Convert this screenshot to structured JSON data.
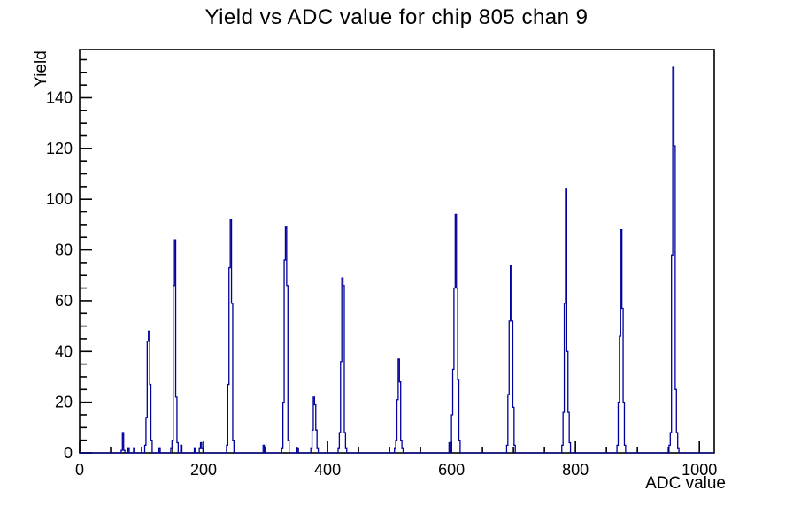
{
  "title": "Yield vs ADC value for chip 805 chan 9",
  "x_axis": {
    "label": "ADC value",
    "min": 0,
    "max": 1024,
    "major_ticks": [
      0,
      200,
      400,
      600,
      800,
      1000
    ],
    "minor_step": 50
  },
  "y_axis": {
    "label": "Yield",
    "min": 0,
    "max": 159,
    "major_ticks": [
      0,
      20,
      40,
      60,
      80,
      100,
      120,
      140
    ],
    "minor_step": 5
  },
  "colors": {
    "histogram": "#00009a",
    "axis": "#000000",
    "background": "#ffffff"
  },
  "chart_data": {
    "type": "bar",
    "title": "Yield vs ADC value for chip 805 chan 9",
    "xlabel": "ADC value",
    "ylabel": "Yield",
    "xlim": [
      0,
      1024
    ],
    "ylim": [
      0,
      159
    ],
    "grid": false,
    "legend": false,
    "bin_width": 2,
    "peaks": [
      {
        "start": 67,
        "heights": [
          1,
          8,
          1
        ]
      },
      {
        "start": 78,
        "heights": [
          2
        ]
      },
      {
        "start": 87,
        "heights": [
          2
        ]
      },
      {
        "start": 105,
        "heights": [
          3,
          14,
          44,
          48,
          27,
          5
        ]
      },
      {
        "start": 128,
        "heights": [
          2
        ]
      },
      {
        "start": 147,
        "heights": [
          2,
          5,
          66,
          84,
          22,
          4
        ]
      },
      {
        "start": 163,
        "heights": [
          3
        ]
      },
      {
        "start": 185,
        "heights": [
          2
        ]
      },
      {
        "start": 193,
        "heights": [
          2,
          4,
          2
        ]
      },
      {
        "start": 237,
        "heights": [
          3,
          27,
          73,
          92,
          59,
          5
        ]
      },
      {
        "start": 296,
        "heights": [
          3
        ]
      },
      {
        "start": 326,
        "heights": [
          2,
          20,
          76,
          89,
          66,
          5
        ]
      },
      {
        "start": 351,
        "heights": [
          2
        ]
      },
      {
        "start": 373,
        "heights": [
          2,
          9,
          22,
          19,
          9,
          2
        ]
      },
      {
        "start": 417,
        "heights": [
          2,
          8,
          36,
          69,
          66,
          8,
          2
        ]
      },
      {
        "start": 508,
        "heights": [
          2,
          5,
          21,
          37,
          28,
          5,
          2
        ]
      },
      {
        "start": 596,
        "heights": [
          4
        ]
      },
      {
        "start": 600,
        "heights": [
          15,
          33,
          65,
          94,
          65,
          29,
          5
        ]
      },
      {
        "start": 689,
        "heights": [
          3,
          23,
          52,
          74,
          52,
          18,
          3
        ]
      },
      {
        "start": 778,
        "heights": [
          3,
          16,
          59,
          104,
          40,
          16,
          4
        ]
      },
      {
        "start": 867,
        "heights": [
          3,
          20,
          46,
          88,
          57,
          20,
          3
        ]
      },
      {
        "start": 951,
        "heights": [
          3,
          8,
          78,
          152,
          121,
          25,
          8,
          2
        ]
      }
    ]
  }
}
